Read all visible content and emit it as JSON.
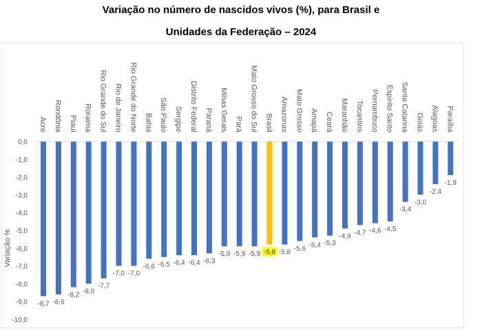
{
  "chart_data": {
    "type": "bar",
    "title_line1": "Variação no número de nascidos vivos (%), para Brasil e",
    "title_line2": "Unidades da Federação – 2024",
    "ylabel": "Variação %",
    "xlabel": "",
    "ylim": [
      -10,
      0
    ],
    "yticks": [
      "0,0",
      "-1,0",
      "-2,0",
      "-3,0",
      "-4,0",
      "-5,0",
      "-6,0",
      "-7,0",
      "-8,0",
      "-9,0",
      "-10,0"
    ],
    "grid": false,
    "categories": [
      "Acre",
      "Rondônia",
      "Piauí",
      "Roraima",
      "Rio Grande do Sul",
      "Rio de Janeiro",
      "Rio Grande do Norte",
      "Bahia",
      "São Paulo",
      "Sergipe",
      "Distrito Federal",
      "Paraná",
      "Minas Gerais",
      "Pará",
      "Mato Grosso do Sul",
      "Brasil",
      "Amazonas",
      "Mato Grosso",
      "Amapá",
      "Ceará",
      "Maranhão",
      "Tocantins",
      "Pernambuco",
      "Espírito Santo",
      "Santa Catarina",
      "Goiás",
      "Alagoas",
      "Paraíba"
    ],
    "values": [
      -8.7,
      -8.6,
      -8.2,
      -8.0,
      -7.7,
      -7.0,
      -7.0,
      -6.6,
      -6.5,
      -6.4,
      -6.4,
      -6.3,
      -5.9,
      -5.9,
      -5.9,
      -5.8,
      -5.8,
      -5.6,
      -5.4,
      -5.3,
      -4.9,
      -4.7,
      -4.6,
      -4.5,
      -3.4,
      -3.0,
      -2.4,
      -1.9
    ],
    "value_labels": [
      "-8,7",
      "-8,6",
      "-8,2",
      "-8,0",
      "-7,7",
      "-7,0",
      "-7,0",
      "-6,6",
      "-6,5",
      "-6,4",
      "-6,4",
      "-6,3",
      "-5,9",
      "-5,9",
      "-5,9",
      "-5,8",
      "-5,8",
      "-5,6",
      "-5,4",
      "-5,3",
      "-4,9",
      "-4,7",
      "-4,6",
      "-4,5",
      "-3,4",
      "-3,0",
      "-2,4",
      "-1,9"
    ],
    "highlight_category": "Brasil",
    "colors": {
      "bar": "#4472C4",
      "highlight": "#FFC000",
      "highlight_label_bg": "#FFFF00",
      "axis_text": "#595959"
    }
  }
}
